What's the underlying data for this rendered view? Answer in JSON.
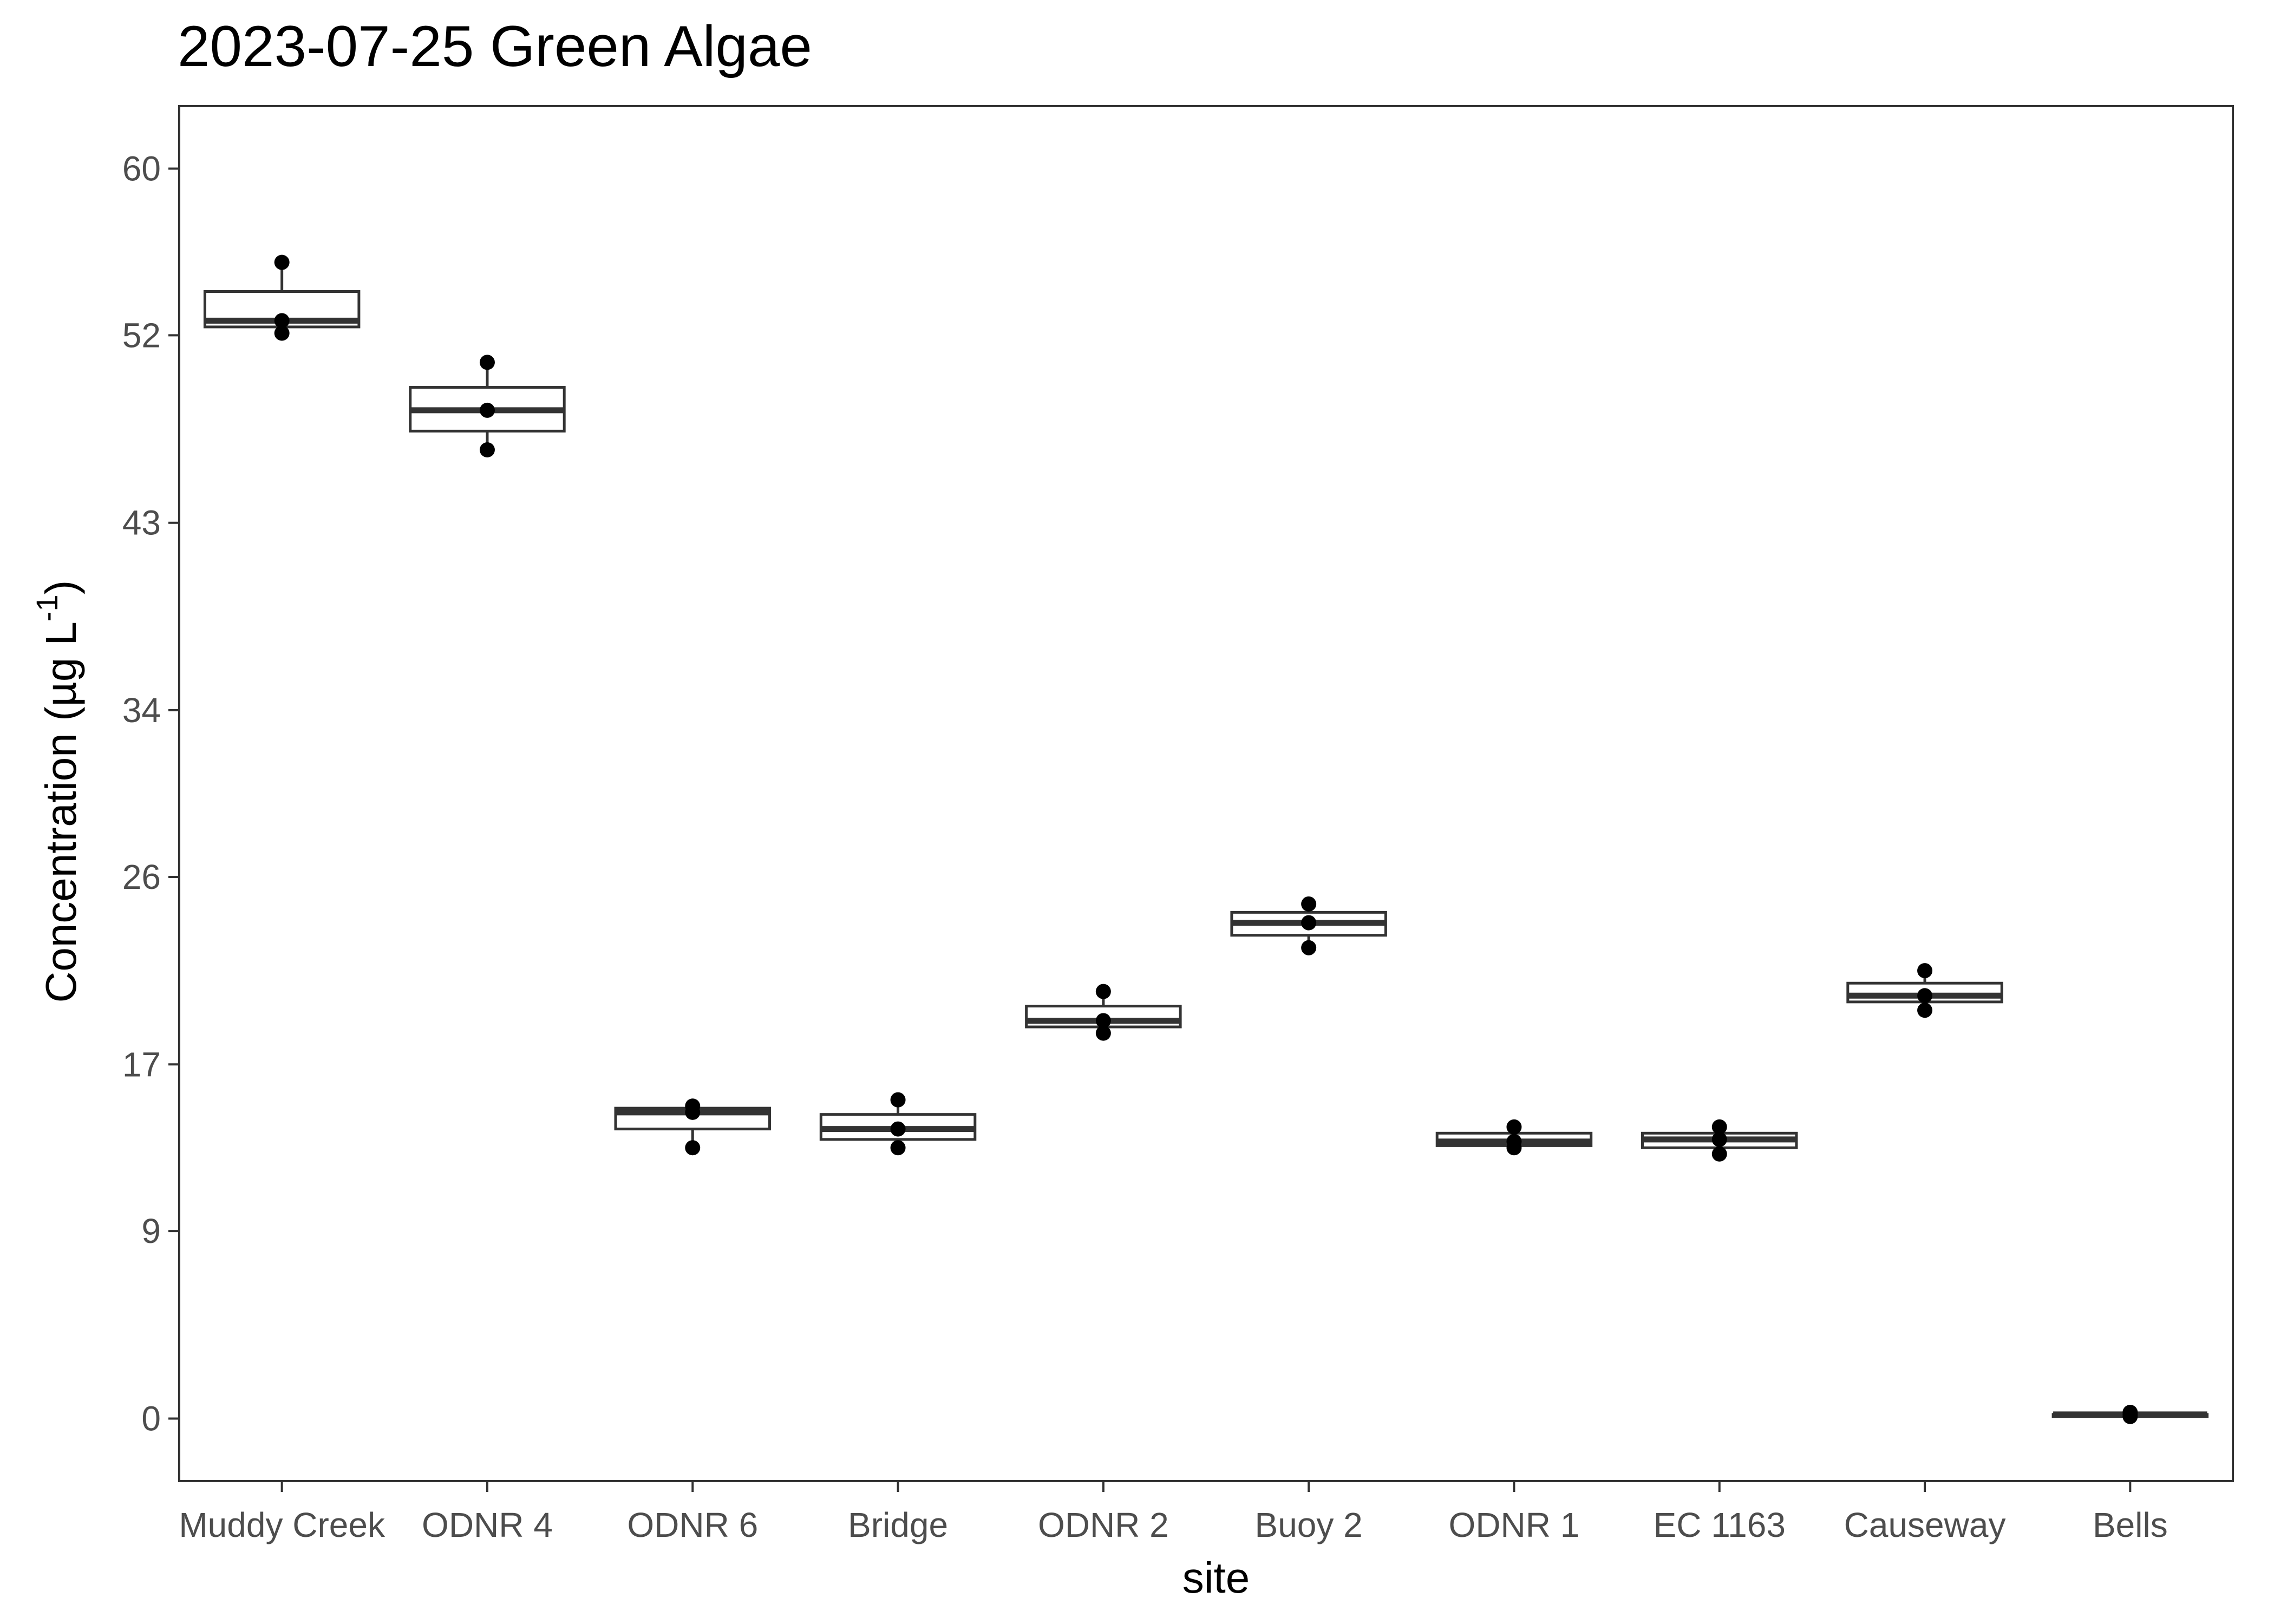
{
  "chart_data": {
    "type": "box",
    "title": "2023-07-25 Green Algae",
    "xlabel": "site",
    "ylabel": "Concentration (µg L⁻¹)",
    "ylim": [
      -3,
      63
    ],
    "yticks": [
      0,
      9,
      17,
      26,
      34,
      43,
      52,
      60
    ],
    "ytick_labels": [
      "0",
      "9",
      "17",
      "26",
      "34",
      "43",
      "52",
      "60"
    ],
    "grid": false,
    "categories": [
      "Muddy Creek",
      "ODNR 4",
      "ODNR 6",
      "Bridge",
      "ODNR 2",
      "Buoy 2",
      "ODNR 1",
      "EC 1163",
      "Causeway",
      "Bells"
    ],
    "boxes": [
      {
        "site": "Muddy Creek",
        "min": 52.1,
        "q1": 52.4,
        "median": 52.7,
        "q3": 54.1,
        "max": 55.5,
        "points": [
          55.5,
          52.7,
          52.1
        ]
      },
      {
        "site": "ODNR 4",
        "min": 46.5,
        "q1": 47.4,
        "median": 48.4,
        "q3": 49.5,
        "max": 50.7,
        "points": [
          50.7,
          48.4,
          46.5
        ]
      },
      {
        "site": "ODNR 6",
        "min": 13.0,
        "q1": 13.9,
        "median": 14.7,
        "q3": 14.9,
        "max": 15.0,
        "points": [
          15.0,
          14.7,
          13.0
        ]
      },
      {
        "site": "Bridge",
        "min": 13.0,
        "q1": 13.4,
        "median": 13.9,
        "q3": 14.6,
        "max": 15.3,
        "points": [
          15.3,
          13.9,
          13.0
        ]
      },
      {
        "site": "ODNR 2",
        "min": 18.5,
        "q1": 18.8,
        "median": 19.1,
        "q3": 19.8,
        "max": 20.5,
        "points": [
          20.5,
          19.1,
          18.5
        ]
      },
      {
        "site": "Buoy 2",
        "min": 22.6,
        "q1": 23.2,
        "median": 23.8,
        "q3": 24.3,
        "max": 24.7,
        "points": [
          24.7,
          23.8,
          22.6
        ]
      },
      {
        "site": "ODNR 1",
        "min": 13.0,
        "q1": 13.1,
        "median": 13.3,
        "q3": 13.7,
        "max": 14.0,
        "points": [
          14.0,
          13.3,
          13.0
        ]
      },
      {
        "site": "EC 1163",
        "min": 12.7,
        "q1": 13.0,
        "median": 13.4,
        "q3": 13.7,
        "max": 14.0,
        "points": [
          14.0,
          13.4,
          12.7
        ]
      },
      {
        "site": "Causeway",
        "min": 19.6,
        "q1": 20.0,
        "median": 20.3,
        "q3": 20.9,
        "max": 21.5,
        "points": [
          21.5,
          20.3,
          19.6
        ]
      },
      {
        "site": "Bells",
        "min": 0.1,
        "q1": 0.1,
        "median": 0.2,
        "q3": 0.2,
        "max": 0.3,
        "points": [
          0.3,
          0.2,
          0.1
        ]
      }
    ]
  }
}
